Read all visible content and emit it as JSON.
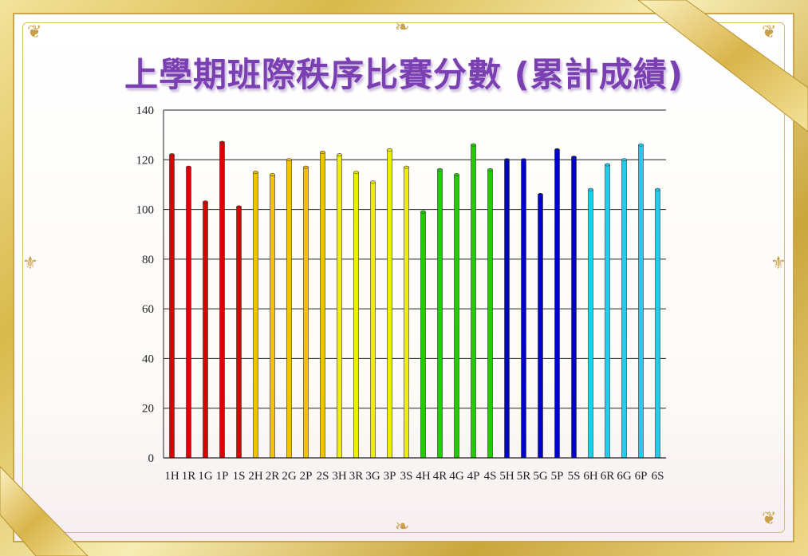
{
  "title": "上學期班際秩序比賽分數 (累計成績)",
  "chart_data": {
    "type": "bar",
    "title": "上學期班際秩序比賽分數 (累計成績)",
    "xlabel": "",
    "ylabel": "",
    "ylim": [
      0,
      140
    ],
    "yticks": [
      "0",
      "20",
      "40",
      "60",
      "80",
      "100",
      "120",
      "140"
    ],
    "grid": true,
    "categories": [
      "1H",
      "1R",
      "1G",
      "1P",
      "1S",
      "2H",
      "2R",
      "2G",
      "2P",
      "2S",
      "3H",
      "3R",
      "3G",
      "3P",
      "3S",
      "4H",
      "4R",
      "4G",
      "4P",
      "4S",
      "5H",
      "5R",
      "5G",
      "5P",
      "5S",
      "6H",
      "6R",
      "6G",
      "6P",
      "6S"
    ],
    "values": [
      122,
      117,
      103,
      127,
      101,
      115,
      114,
      120,
      117,
      123,
      122,
      115,
      111,
      124,
      117,
      99,
      116,
      114,
      126,
      116,
      120,
      120,
      106,
      124,
      121,
      108,
      118,
      120,
      126,
      108
    ],
    "bar_colors": [
      "#dd0000",
      "#dd0000",
      "#dd0000",
      "#dd0000",
      "#dd0000",
      "#f2c200",
      "#f2c200",
      "#f2c200",
      "#f2c200",
      "#f2c200",
      "#eeee00",
      "#eeee00",
      "#eeee00",
      "#eeee00",
      "#eeee00",
      "#22cc00",
      "#22cc00",
      "#22cc00",
      "#22cc00",
      "#22cc00",
      "#0000cc",
      "#0000cc",
      "#0000cc",
      "#0000cc",
      "#0000cc",
      "#22ccee",
      "#22ccee",
      "#22ccee",
      "#22ccee",
      "#22ccee"
    ]
  }
}
